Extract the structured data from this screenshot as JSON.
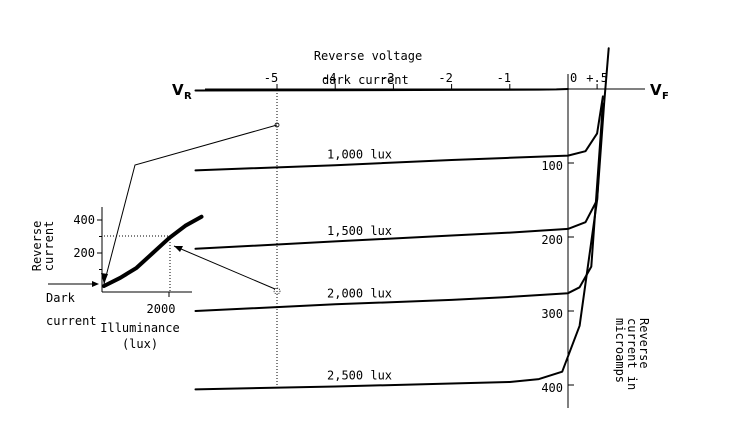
{
  "chart_data": [
    {
      "type": "line",
      "title": "",
      "top_axis_label": "Reverse voltage",
      "left_axis_label": "V",
      "left_axis_sub": "R",
      "right_axis_label": "V",
      "right_axis_sub": "F",
      "x_ticks": [
        "-5",
        "-4",
        "-3",
        "-2",
        "-1",
        "0",
        "+.5"
      ],
      "y_ticks": [
        "100",
        "200",
        "300",
        "400"
      ],
      "y_label_lines": [
        "Reverse",
        "current in",
        "microamps"
      ],
      "xlim": [
        -6.8,
        1.2
      ],
      "ylim": [
        -50,
        480
      ],
      "series": [
        {
          "name": "dark current",
          "x": [
            -6.4,
            -4,
            -2,
            -1,
            -0.5,
            -0.2,
            0.0
          ],
          "y": [
            2,
            1.6,
            1.2,
            1.0,
            0.8,
            0.5,
            0.0
          ]
        },
        {
          "name": "1,000 lux",
          "x": [
            -6.4,
            -4,
            -2,
            -1,
            0,
            0.3,
            0.5,
            0.6
          ],
          "y": [
            110,
            103,
            96,
            93,
            90,
            84,
            60,
            10
          ]
        },
        {
          "name": "1,500 lux",
          "x": [
            -6.4,
            -4,
            -2,
            -1,
            0,
            0.3,
            0.5,
            0.6
          ],
          "y": [
            216,
            206,
            198,
            194,
            189,
            180,
            150,
            20
          ]
        },
        {
          "name": "2,000 lux",
          "x": [
            -6.4,
            -4,
            -2,
            -1,
            0,
            0.2,
            0.4,
            0.6
          ],
          "y": [
            300,
            291,
            285,
            281,
            276,
            268,
            240,
            20
          ]
        },
        {
          "name": "2,500 lux",
          "x": [
            -6.4,
            -4,
            -2,
            -1,
            -0.5,
            -0.1,
            0.2,
            0.5,
            0.62,
            0.7
          ],
          "y": [
            406,
            402,
            398,
            396,
            392,
            382,
            320,
            150,
            20,
            -55
          ]
        }
      ]
    },
    {
      "type": "line",
      "title": "",
      "xlabel_lines": [
        "Illuminance",
        "(lux)"
      ],
      "ylabel_lines": [
        "Reverse",
        "current"
      ],
      "x_origin_label_lines": [
        "Dark",
        "current"
      ],
      "x_ticks": [
        "2000"
      ],
      "y_ticks": [
        "200",
        "400"
      ],
      "xlim": [
        0,
        3000
      ],
      "ylim": [
        0,
        480
      ],
      "series": [
        {
          "name": "",
          "x": [
            0,
            500,
            1000,
            1500,
            2000,
            2500,
            3000
          ],
          "y": [
            0,
            50,
            110,
            200,
            290,
            365,
            420
          ]
        }
      ]
    }
  ]
}
